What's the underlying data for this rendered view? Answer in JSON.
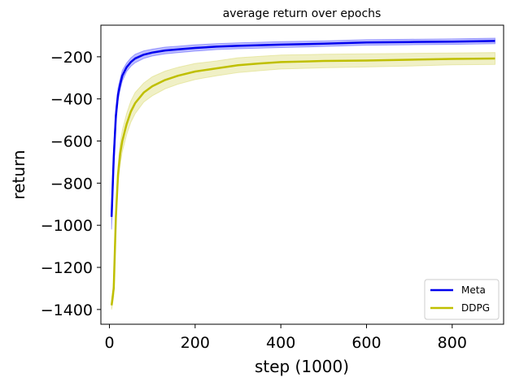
{
  "chart_data": {
    "type": "line",
    "title": "average return over epochs",
    "xlabel": "step (1000)",
    "ylabel": "return",
    "xlim": [
      -20,
      920
    ],
    "ylim": [
      -1470,
      -50
    ],
    "xticks": [
      0,
      200,
      400,
      600,
      800
    ],
    "yticks": [
      -1400,
      -1200,
      -1000,
      -800,
      -600,
      -400,
      -200
    ],
    "xtick_labels": [
      "0",
      "200",
      "400",
      "600",
      "800"
    ],
    "ytick_labels": [
      "−1400",
      "−1200",
      "−1000",
      "−800",
      "−600",
      "−400",
      "−200"
    ],
    "grid": false,
    "legend_position": "lower-right",
    "series": [
      {
        "name": "Meta",
        "color": "#0000ee",
        "band_color": "#6b6bff",
        "x": [
          5,
          10,
          15,
          20,
          25,
          30,
          40,
          50,
          60,
          80,
          100,
          130,
          160,
          200,
          250,
          300,
          400,
          500,
          600,
          700,
          800,
          900
        ],
        "y": [
          -960,
          -680,
          -480,
          -380,
          -330,
          -290,
          -250,
          -225,
          -208,
          -190,
          -180,
          -170,
          -165,
          -158,
          -152,
          -148,
          -142,
          -138,
          -132,
          -130,
          -128,
          -125
        ],
        "lower": [
          -1020,
          -730,
          -520,
          -410,
          -355,
          -315,
          -270,
          -245,
          -228,
          -208,
          -196,
          -186,
          -180,
          -173,
          -166,
          -162,
          -156,
          -151,
          -145,
          -143,
          -141,
          -138
        ],
        "upper": [
          -900,
          -630,
          -440,
          -350,
          -305,
          -265,
          -230,
          -205,
          -188,
          -172,
          -164,
          -154,
          -150,
          -143,
          -138,
          -134,
          -128,
          -125,
          -119,
          -117,
          -115,
          -112
        ]
      },
      {
        "name": "DDPG",
        "color": "#bfbf00",
        "band_color": "#dede80",
        "x": [
          5,
          10,
          15,
          20,
          25,
          30,
          40,
          50,
          60,
          80,
          100,
          130,
          160,
          200,
          250,
          300,
          350,
          400,
          500,
          600,
          700,
          800,
          900
        ],
        "y": [
          -1380,
          -1300,
          -960,
          -760,
          -660,
          -600,
          -520,
          -460,
          -420,
          -370,
          -340,
          -310,
          -290,
          -270,
          -255,
          -240,
          -232,
          -225,
          -220,
          -218,
          -214,
          -210,
          -208
        ],
        "lower": [
          -1400,
          -1340,
          -1000,
          -800,
          -710,
          -650,
          -570,
          -510,
          -470,
          -415,
          -385,
          -352,
          -330,
          -308,
          -290,
          -275,
          -266,
          -258,
          -252,
          -248,
          -244,
          -238,
          -236
        ],
        "upper": [
          -1360,
          -1260,
          -920,
          -720,
          -610,
          -550,
          -470,
          -410,
          -370,
          -325,
          -295,
          -268,
          -250,
          -232,
          -220,
          -205,
          -198,
          -192,
          -188,
          -186,
          -184,
          -182,
          -180
        ]
      }
    ]
  }
}
